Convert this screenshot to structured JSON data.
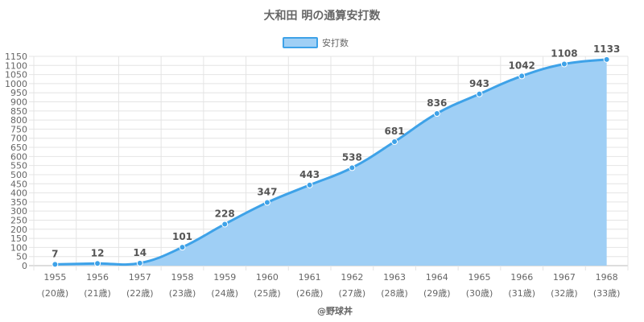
{
  "chart_data": {
    "type": "area",
    "title": "大和田 明の通算安打数",
    "legend": {
      "label": "安打数",
      "position": "top-center"
    },
    "categories": [
      "1955",
      "1956",
      "1957",
      "1958",
      "1959",
      "1960",
      "1961",
      "1962",
      "1963",
      "1964",
      "1965",
      "1966",
      "1967",
      "1968"
    ],
    "ages": [
      "(20歳)",
      "(21歳)",
      "(22歳)",
      "(23歳)",
      "(24歳)",
      "(25歳)",
      "(26歳)",
      "(27歳)",
      "(28歳)",
      "(29歳)",
      "(30歳)",
      "(31歳)",
      "(32歳)",
      "(33歳)"
    ],
    "series": [
      {
        "name": "安打数",
        "values": [
          7,
          12,
          14,
          101,
          228,
          347,
          443,
          538,
          681,
          836,
          943,
          1042,
          1108,
          1133
        ]
      }
    ],
    "ylim": [
      0,
      1150
    ],
    "ytick_step": 50,
    "grid": true,
    "colors": {
      "fill": "#9fcff5",
      "line": "#3ea2e8",
      "grid": "#e4e4e4",
      "axis": "#bbbbbb"
    },
    "footer": "@野球丼"
  }
}
